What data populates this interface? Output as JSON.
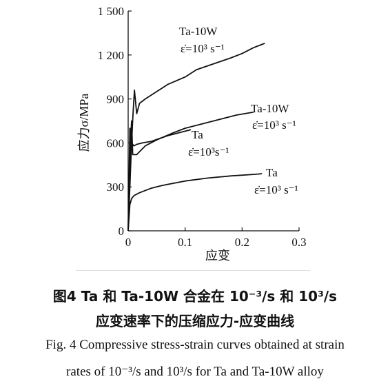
{
  "chart_data": {
    "type": "line",
    "xlabel": "应变",
    "ylabel": "应力σ/MPa",
    "xlim": [
      0,
      0.3
    ],
    "ylim": [
      0,
      1500
    ],
    "x_ticks": [
      "0",
      "0.1",
      "0.2",
      "0.3"
    ],
    "y_ticks": [
      "0",
      "300",
      "600",
      "900",
      "1 200",
      "1 500"
    ],
    "series": [
      {
        "name": "Ta-10W ε̇=10³ s⁻¹ (upper)",
        "x": [
          0,
          0.005,
          0.008,
          0.011,
          0.015,
          0.02,
          0.03,
          0.05,
          0.07,
          0.1,
          0.12,
          0.15,
          0.18,
          0.2,
          0.22,
          0.24
        ],
        "y": [
          0,
          500,
          760,
          960,
          800,
          870,
          900,
          950,
          1000,
          1050,
          1100,
          1140,
          1180,
          1210,
          1250,
          1280
        ]
      },
      {
        "name": "Ta-10W ε̇=10³ s⁻¹",
        "x": [
          0,
          0.004,
          0.006,
          0.008,
          0.015,
          0.03,
          0.05,
          0.08,
          0.1,
          0.13,
          0.16,
          0.19,
          0.22
        ],
        "y": [
          0,
          600,
          750,
          520,
          520,
          580,
          620,
          670,
          700,
          730,
          760,
          790,
          810
        ]
      },
      {
        "name": "Ta ε̇=10³s⁻¹",
        "x": [
          0,
          0.003,
          0.006,
          0.01,
          0.015,
          0.025,
          0.04,
          0.055,
          0.07,
          0.09,
          0.11
        ],
        "y": [
          0,
          700,
          600,
          580,
          590,
          600,
          610,
          630,
          650,
          670,
          690
        ]
      },
      {
        "name": "Ta ε̇=10³ s⁻¹",
        "x": [
          0,
          0.003,
          0.006,
          0.01,
          0.02,
          0.04,
          0.06,
          0.1,
          0.14,
          0.18,
          0.22,
          0.235
        ],
        "y": [
          0,
          180,
          220,
          240,
          260,
          290,
          310,
          340,
          360,
          375,
          385,
          390
        ]
      }
    ],
    "annotations": [
      {
        "line1": "Ta-10W",
        "line2": "ε̇=10³ s⁻¹"
      },
      {
        "line1": "Ta-10W",
        "line2": "ε̇=10³ s⁻¹"
      },
      {
        "line1": "Ta",
        "line2": "ε̇=10³s⁻¹"
      },
      {
        "line1": "Ta",
        "line2": "ε̇=10³ s⁻¹"
      }
    ]
  },
  "caption": {
    "zh_line1": "图4   Ta 和 Ta-10W 合金在 10⁻³/s 和 10³/s",
    "zh_line2": "应变速率下的压缩应力-应变曲线",
    "en_line1": "Fig. 4   Compressive stress-strain curves obtained at strain",
    "en_line2": "rates of 10⁻³/s and 10³/s for Ta and Ta-10W alloy"
  }
}
